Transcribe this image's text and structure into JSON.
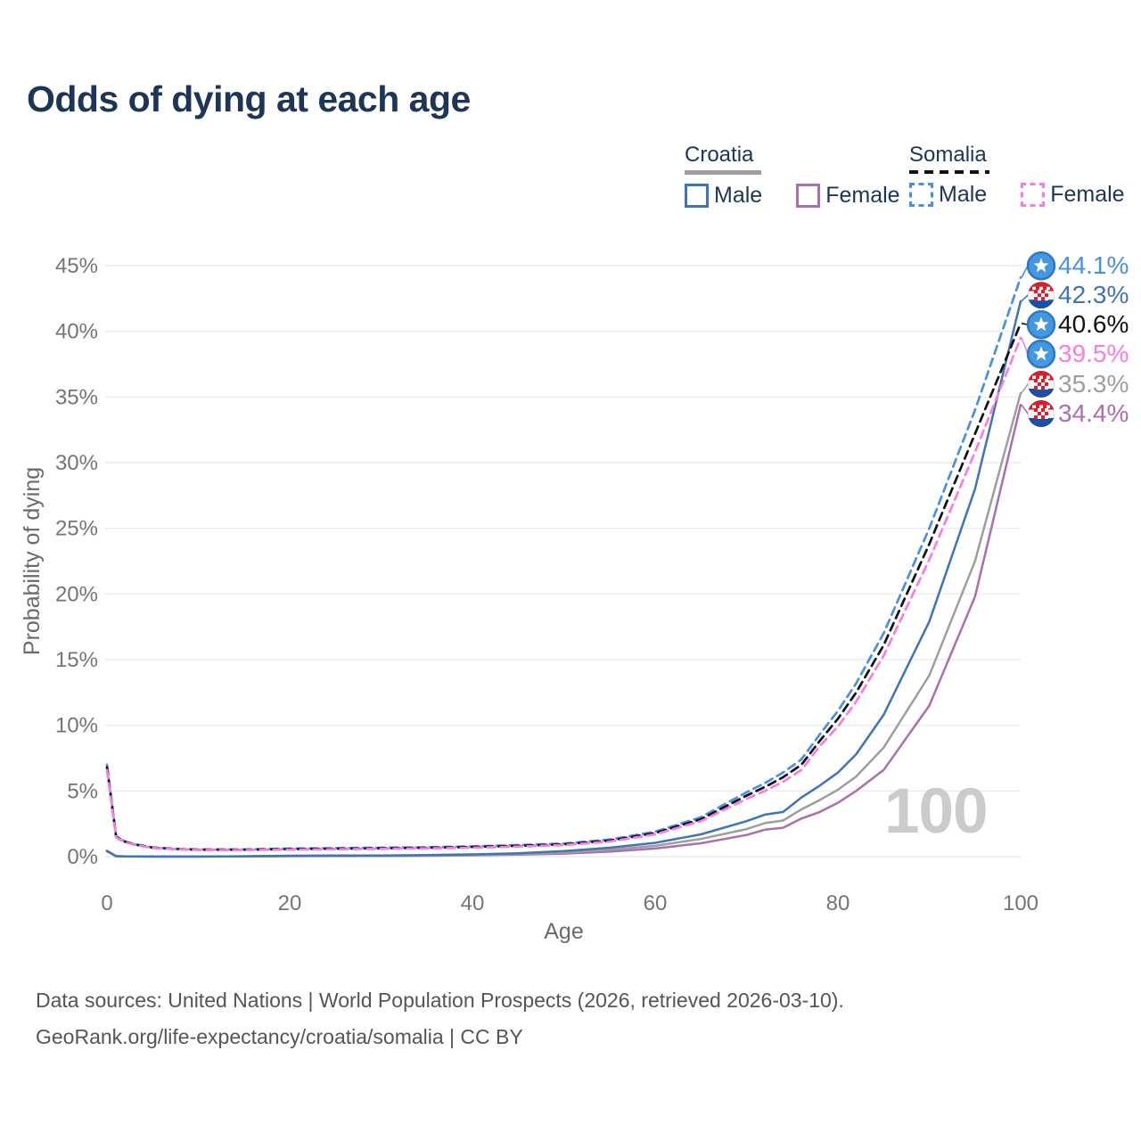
{
  "title": "Odds of dying at each age",
  "watermark": "100",
  "colors": {
    "title_text": "#1d3557",
    "axis_text": "#757575",
    "gridline": "#ececec",
    "watermark": "#cbcbcb",
    "footer_text": "#555555"
  },
  "legend": {
    "groups": [
      {
        "country": "Croatia",
        "line_style": "solid",
        "header_color": "#9e9e9e",
        "items": [
          {
            "label": "Male",
            "color": "#3f74b6"
          },
          {
            "label": "Female",
            "color": "#ab6fae"
          }
        ]
      },
      {
        "country": "Somalia",
        "line_style": "dashed",
        "header_color": "#111111",
        "items": [
          {
            "label": "Male",
            "color": "#4a90e2"
          },
          {
            "label": "Female",
            "color": "#f97ce1"
          }
        ]
      }
    ]
  },
  "footer": {
    "line1": "Data sources: United Nations | World Population Prospects (2026, retrieved 2026-03-10).",
    "line2": "GeoRank.org/life-expectancy/croatia/somalia | CC BY"
  },
  "chart_data": {
    "type": "line",
    "title": "Odds of dying at each age",
    "xlabel": "Age",
    "ylabel": "Probability of dying",
    "xlim": [
      0,
      100
    ],
    "ylim": [
      0,
      45
    ],
    "x_ticks": [
      0,
      20,
      40,
      60,
      80,
      100
    ],
    "y_ticks": [
      0,
      5,
      10,
      15,
      20,
      25,
      30,
      35,
      40,
      45
    ],
    "y_tick_suffix": "%",
    "grid": true,
    "legend_position": "top-right",
    "ages": [
      0,
      1,
      2,
      3,
      5,
      8,
      10,
      15,
      20,
      25,
      30,
      35,
      40,
      45,
      50,
      55,
      60,
      65,
      70,
      72,
      74,
      76,
      78,
      80,
      82,
      85,
      90,
      95,
      100
    ],
    "series": [
      {
        "id": "croatia-female",
        "name": "Croatia Female",
        "country": "Croatia",
        "sex": "Female",
        "color": "#ab6fae",
        "dash": false,
        "flag": "croatia",
        "end_label": "34.4%",
        "end_value": 34.4,
        "values": [
          0.4,
          0.03,
          0.015,
          0.012,
          0.01,
          0.01,
          0.01,
          0.02,
          0.035,
          0.04,
          0.05,
          0.07,
          0.1,
          0.15,
          0.23,
          0.38,
          0.62,
          1.02,
          1.65,
          2.05,
          2.2,
          2.9,
          3.4,
          4.1,
          5.0,
          6.6,
          11.5,
          19.8,
          34.4
        ]
      },
      {
        "id": "croatia-both",
        "name": "Croatia",
        "country": "Croatia",
        "sex": "Both",
        "color": "#9e9e9e",
        "dash": false,
        "flag": "croatia",
        "end_label": "35.3%",
        "end_value": 35.3,
        "values": [
          0.42,
          0.035,
          0.02,
          0.015,
          0.01,
          0.01,
          0.01,
          0.025,
          0.05,
          0.06,
          0.07,
          0.09,
          0.13,
          0.2,
          0.31,
          0.52,
          0.82,
          1.35,
          2.1,
          2.55,
          2.75,
          3.6,
          4.3,
          5.1,
          6.1,
          8.3,
          13.8,
          22.5,
          35.3
        ]
      },
      {
        "id": "croatia-male",
        "name": "Croatia Male",
        "country": "Croatia",
        "sex": "Male",
        "color": "#3f74b6",
        "dash": false,
        "flag": "croatia",
        "end_label": "42.3%",
        "end_value": 42.3,
        "values": [
          0.45,
          0.04,
          0.02,
          0.02,
          0.01,
          0.01,
          0.01,
          0.03,
          0.07,
          0.08,
          0.09,
          0.12,
          0.17,
          0.26,
          0.42,
          0.68,
          1.05,
          1.7,
          2.7,
          3.2,
          3.4,
          4.5,
          5.4,
          6.4,
          7.8,
          10.8,
          17.9,
          28.0,
          42.3
        ]
      },
      {
        "id": "somalia-male",
        "name": "Somalia Male",
        "country": "Somalia",
        "sex": "Male",
        "color": "#4a90e2",
        "dash": true,
        "flag": "somalia",
        "end_label": "44.1%",
        "end_value": 44.1,
        "values": [
          7.0,
          1.55,
          1.15,
          0.95,
          0.7,
          0.58,
          0.55,
          0.55,
          0.62,
          0.65,
          0.68,
          0.72,
          0.78,
          0.88,
          1.0,
          1.3,
          1.9,
          3.0,
          4.9,
          5.6,
          6.4,
          7.4,
          9.3,
          11.1,
          13.2,
          17.0,
          25.0,
          34.0,
          44.1
        ]
      },
      {
        "id": "somalia-both",
        "name": "Somalia",
        "country": "Somalia",
        "sex": "Both",
        "color": "#111111",
        "dash": true,
        "flag": "somalia",
        "end_label": "40.6%",
        "end_value": 40.6,
        "values": [
          6.8,
          1.5,
          1.12,
          0.92,
          0.68,
          0.56,
          0.53,
          0.52,
          0.57,
          0.6,
          0.63,
          0.67,
          0.73,
          0.82,
          0.94,
          1.22,
          1.8,
          2.85,
          4.65,
          5.3,
          6.05,
          7.0,
          8.8,
          10.5,
          12.5,
          16.1,
          23.8,
          32.2,
          40.6
        ]
      },
      {
        "id": "somalia-female",
        "name": "Somalia Female",
        "country": "Somalia",
        "sex": "Female",
        "color": "#f97ce1",
        "dash": true,
        "flag": "somalia",
        "end_label": "39.5%",
        "end_value": 39.5,
        "values": [
          6.6,
          1.45,
          1.08,
          0.9,
          0.66,
          0.54,
          0.51,
          0.5,
          0.53,
          0.56,
          0.59,
          0.63,
          0.68,
          0.77,
          0.88,
          1.15,
          1.7,
          2.7,
          4.4,
          5.0,
          5.7,
          6.6,
          8.4,
          9.9,
          11.8,
          15.3,
          22.6,
          30.8,
          39.5
        ]
      }
    ]
  }
}
